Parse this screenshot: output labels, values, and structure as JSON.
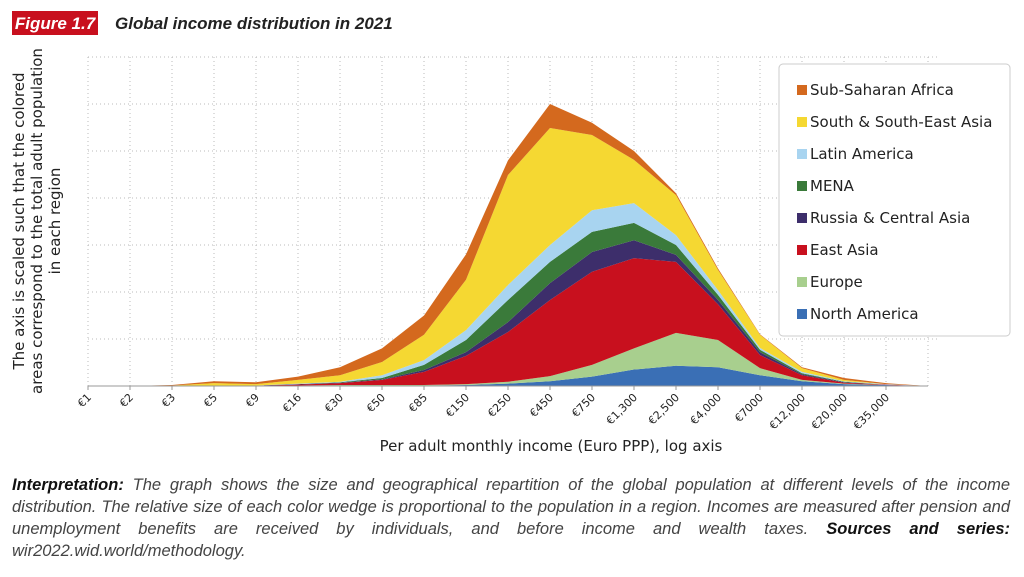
{
  "header": {
    "figure_label": "Figure 1.7",
    "title": "Global income distribution in 2021"
  },
  "chart_data": {
    "type": "stacked-area",
    "y_label": [
      "The axis is scaled such that the colored",
      "areas correspond to the total adult population",
      "in each region"
    ],
    "x_label": "Per adult monthly income (Euro PPP), log axis",
    "categories": [
      "€1",
      "€2",
      "€3",
      "€5",
      "€9",
      "€16",
      "€30",
      "€50",
      "€85",
      "€150",
      "€250",
      "€450",
      "€750",
      "€1,300",
      "€2,500",
      "€4,000",
      "€7000",
      "€12,000",
      "€20,000",
      "€35,000",
      null
    ],
    "ylim": [
      0,
      7
    ],
    "ygrid": [
      1,
      2,
      3,
      4,
      5,
      6,
      7
    ],
    "grid": true,
    "legend": "top-right",
    "series": [
      {
        "name": "North America",
        "color": "#3a6fb5",
        "values": [
          0,
          0,
          0,
          0,
          0,
          0.01,
          0.01,
          0.01,
          0.01,
          0.02,
          0.05,
          0.1,
          0.2,
          0.35,
          0.43,
          0.4,
          0.23,
          0.1,
          0.04,
          0.02,
          0
        ]
      },
      {
        "name": "Europe",
        "color": "#a8cf8e",
        "values": [
          0,
          0,
          0,
          0,
          0,
          0,
          0.01,
          0.01,
          0.01,
          0.02,
          0.04,
          0.11,
          0.25,
          0.45,
          0.7,
          0.58,
          0.15,
          0.03,
          0.01,
          0,
          0
        ]
      },
      {
        "name": "East Asia",
        "color": "#c8101e",
        "values": [
          0,
          0,
          0,
          0.01,
          0.01,
          0.02,
          0.04,
          0.11,
          0.28,
          0.6,
          1.06,
          1.62,
          1.98,
          1.92,
          1.51,
          0.76,
          0.28,
          0.1,
          0.02,
          0.01,
          0
        ]
      },
      {
        "name": "Russia & Central Asia",
        "color": "#3d2e6b",
        "values": [
          0,
          0,
          0,
          0,
          0,
          0.01,
          0.01,
          0.01,
          0.04,
          0.08,
          0.21,
          0.36,
          0.42,
          0.38,
          0.15,
          0.09,
          0.06,
          0.02,
          0.01,
          0,
          0
        ]
      },
      {
        "name": "MENA",
        "color": "#3a7a3a",
        "values": [
          0,
          0,
          0,
          0,
          0,
          0,
          0.01,
          0.03,
          0.11,
          0.26,
          0.47,
          0.45,
          0.43,
          0.37,
          0.21,
          0.11,
          0.05,
          0.02,
          0.01,
          0,
          0
        ]
      },
      {
        "name": "Latin America",
        "color": "#a8d4f0",
        "values": [
          0,
          0,
          0,
          0,
          0,
          0.01,
          0.01,
          0.06,
          0.1,
          0.21,
          0.32,
          0.36,
          0.46,
          0.42,
          0.21,
          0.1,
          0.04,
          0.03,
          0.01,
          0.01,
          0
        ]
      },
      {
        "name": "South & South-East Asia",
        "color": "#f5d832",
        "values": [
          0,
          0,
          0.01,
          0.05,
          0.03,
          0.08,
          0.14,
          0.28,
          0.54,
          1.07,
          2.34,
          2.49,
          1.6,
          0.92,
          0.85,
          0.43,
          0.28,
          0.08,
          0.03,
          0,
          0
        ]
      },
      {
        "name": "Sub-Saharan Africa",
        "color": "#d4691e",
        "values": [
          0,
          0,
          0.01,
          0.04,
          0.04,
          0.07,
          0.17,
          0.29,
          0.41,
          0.54,
          0.31,
          0.51,
          0.26,
          0.19,
          0.04,
          0.03,
          0.01,
          0.02,
          0.04,
          0.02,
          0
        ]
      }
    ]
  },
  "interpretation": {
    "label": "Interpretation:",
    "text": "The graph shows the size and geographical repartition of the global population at different levels of the income distribution. The relative size of each color wedge is proportional to the population in a region. Incomes are measured after pension and unemployment benefits are received by individuals, and before income and wealth taxes."
  },
  "sources": {
    "label": "Sources and series:",
    "text": "wir2022.wid.world/methodology."
  }
}
